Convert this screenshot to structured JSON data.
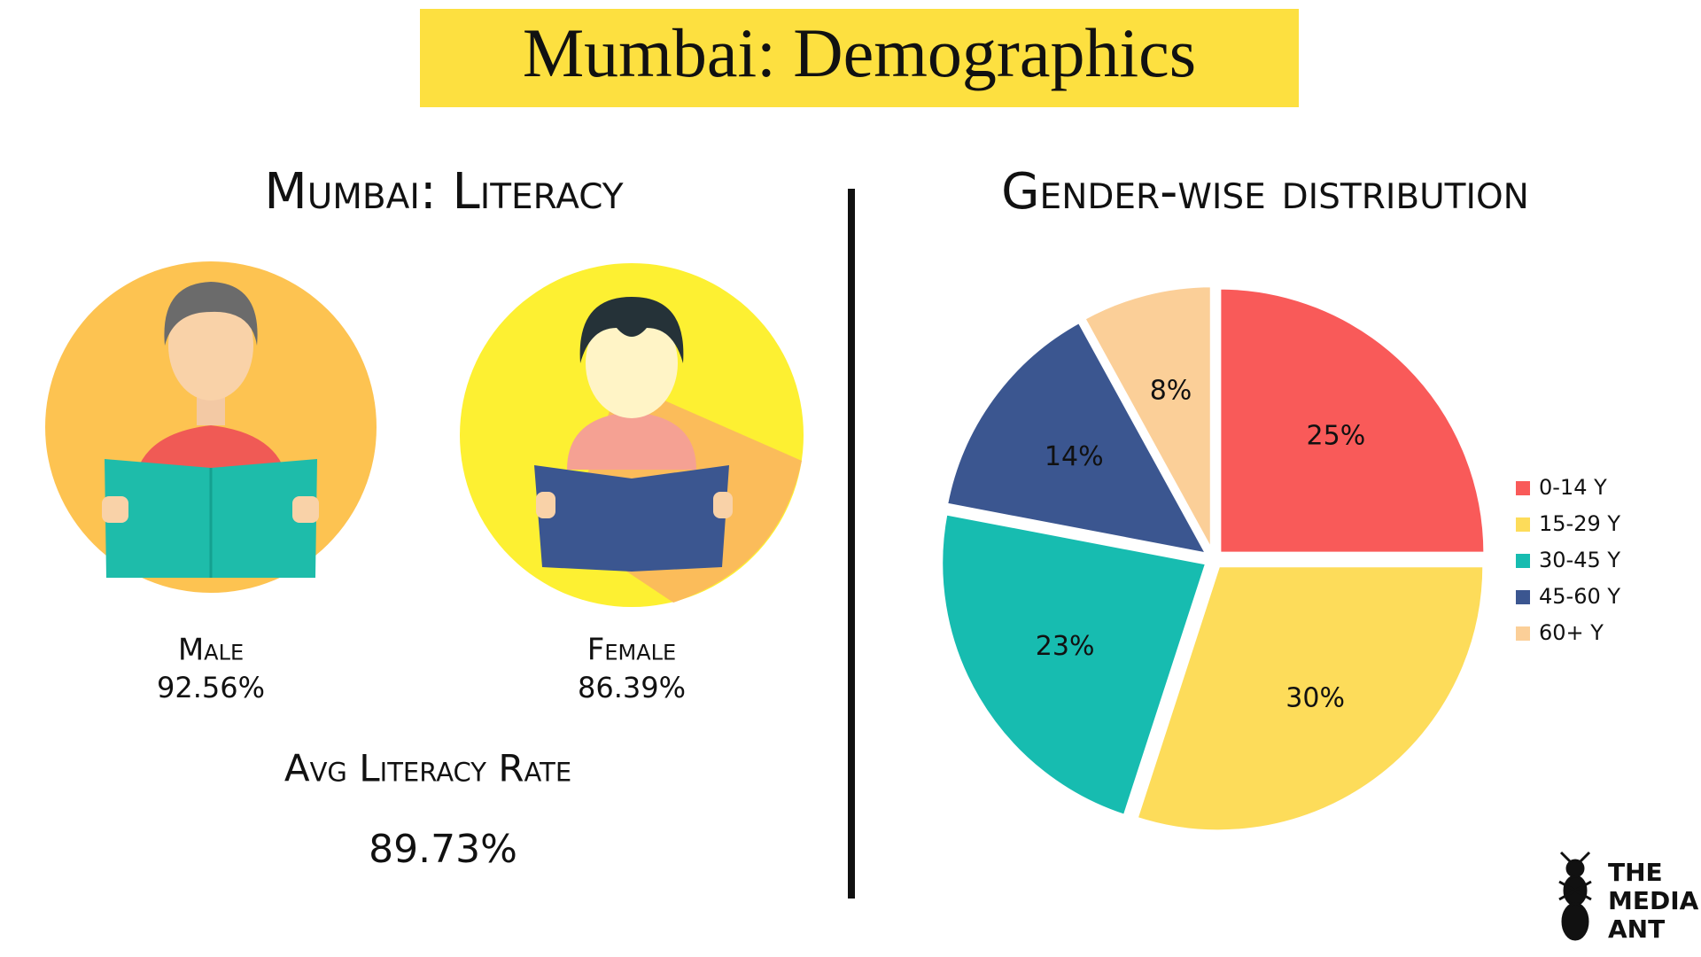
{
  "header": {
    "title": "Mumbai: Demographics"
  },
  "literacy": {
    "title": "Mumbai: Literacy",
    "male": {
      "label": "Male",
      "value": "92.56%"
    },
    "female": {
      "label": "Female",
      "value": "86.39%"
    },
    "average": {
      "label": "Avg Literacy Rate",
      "value": "89.73%"
    }
  },
  "chart_data": {
    "type": "pie",
    "title": "Gender-wise distribution",
    "categories": [
      "0-14 Y",
      "15-29 Y",
      "30-45 Y",
      "45-60 Y",
      "60+ Y"
    ],
    "values": [
      25,
      30,
      23,
      14,
      8
    ],
    "value_labels": [
      "25%",
      "30%",
      "23%",
      "14%",
      "8%"
    ],
    "colors": [
      "#f95a59",
      "#fddc5a",
      "#17bcb0",
      "#3b5690",
      "#fbcf98"
    ],
    "legend": "right"
  },
  "logo": {
    "lines": [
      "THE",
      "MEDIA",
      "ANT"
    ]
  }
}
